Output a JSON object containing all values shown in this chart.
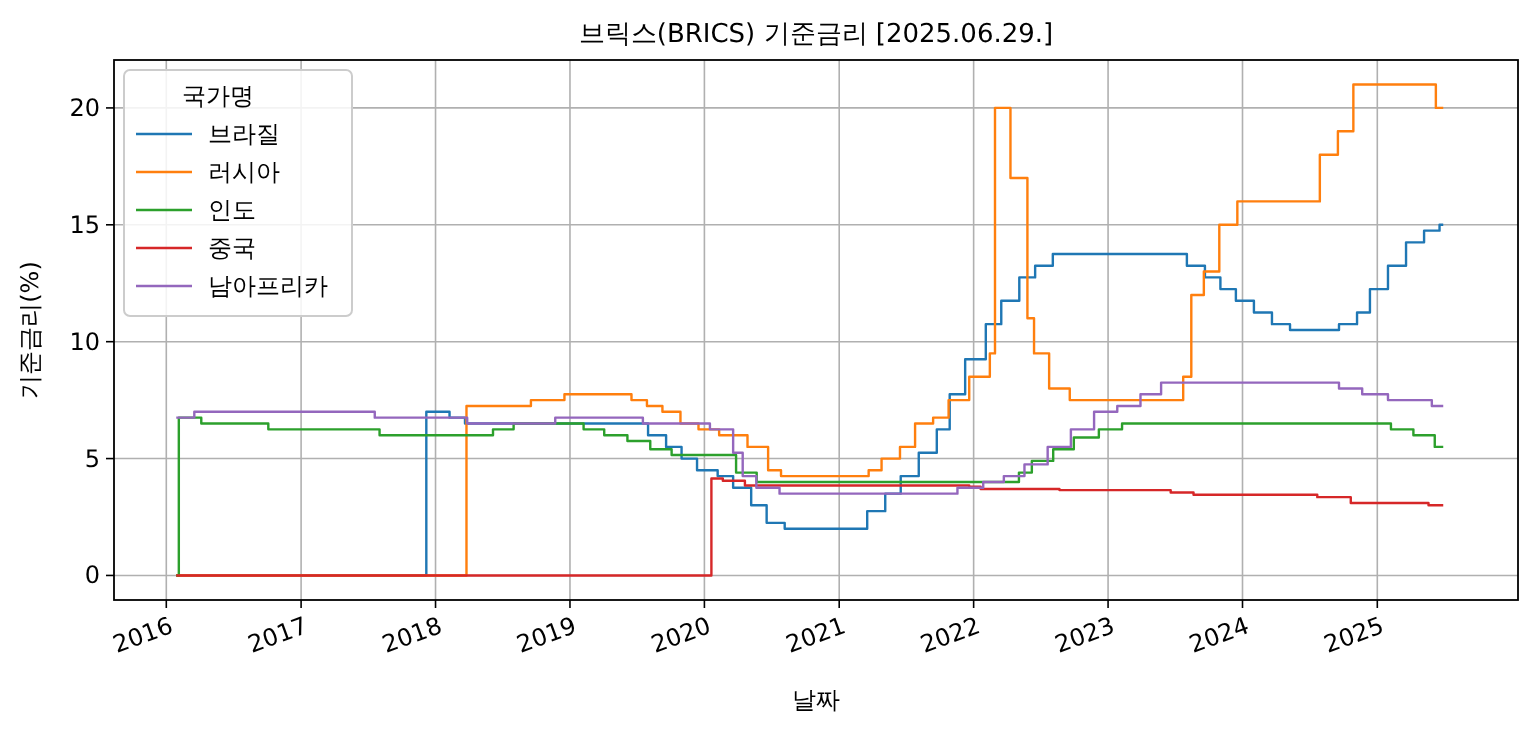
{
  "chart_data": {
    "type": "step",
    "title": "브릭스(BRICS) 기준금리 [2025.06.29.]",
    "xlabel": "날짜",
    "ylabel": "기준금리(%)",
    "legend_title": "국가명",
    "legend": "top left",
    "grid": true,
    "xlim": [
      "2015-08-12",
      "2026-01-18"
    ],
    "xticks": [
      "2016",
      "2017",
      "2018",
      "2019",
      "2020",
      "2021",
      "2022",
      "2023",
      "2024",
      "2025"
    ],
    "ylim": [
      -1.05,
      22.05
    ],
    "yticks": [
      0,
      5,
      10,
      15,
      20
    ],
    "series": [
      {
        "name": "브라질",
        "color": "#1f77b4",
        "x": [
          "2016-01-28",
          "2017-12-07",
          "2018-02-08",
          "2018-03-22",
          "2019-08-01",
          "2019-09-19",
          "2019-10-31",
          "2019-12-12",
          "2020-02-06",
          "2020-03-19",
          "2020-05-07",
          "2020-06-18",
          "2020-08-06",
          "2021-03-18",
          "2021-05-06",
          "2021-06-17",
          "2021-08-05",
          "2021-09-23",
          "2021-10-28",
          "2021-12-09",
          "2022-02-03",
          "2022-03-17",
          "2022-05-05",
          "2022-06-17",
          "2022-08-04",
          "2023-08-03",
          "2023-09-21",
          "2023-11-02",
          "2023-12-14",
          "2024-02-01",
          "2024-03-21",
          "2024-05-09",
          "2024-09-19",
          "2024-11-07",
          "2024-12-12",
          "2025-01-30",
          "2025-03-20",
          "2025-05-08",
          "2025-06-19",
          "2025-06-29"
        ],
        "values": [
          0,
          7.0,
          6.75,
          6.5,
          6.0,
          5.5,
          5.0,
          4.5,
          4.25,
          3.75,
          3.0,
          2.25,
          2.0,
          2.75,
          3.5,
          4.25,
          5.25,
          6.25,
          7.75,
          9.25,
          10.75,
          11.75,
          12.75,
          13.25,
          13.75,
          13.25,
          12.75,
          12.25,
          11.75,
          11.25,
          10.75,
          10.5,
          10.75,
          11.25,
          12.25,
          13.25,
          14.25,
          14.75,
          15.0,
          15.0
        ]
      },
      {
        "name": "러시아",
        "color": "#ff7f0e",
        "x": [
          "2016-01-28",
          "2018-03-26",
          "2018-09-17",
          "2018-12-17",
          "2019-06-17",
          "2019-07-29",
          "2019-09-09",
          "2019-10-28",
          "2019-12-16",
          "2020-02-10",
          "2020-04-27",
          "2020-06-22",
          "2020-07-27",
          "2021-03-22",
          "2021-04-26",
          "2021-06-15",
          "2021-07-26",
          "2021-09-13",
          "2021-10-25",
          "2021-12-20",
          "2022-02-14",
          "2022-02-28",
          "2022-04-11",
          "2022-05-27",
          "2022-06-14",
          "2022-07-25",
          "2022-09-19",
          "2023-07-24",
          "2023-08-15",
          "2023-09-18",
          "2023-10-30",
          "2023-12-18",
          "2024-07-29",
          "2024-09-16",
          "2024-10-28",
          "2025-06-09",
          "2025-06-29"
        ],
        "values": [
          0,
          7.25,
          7.5,
          7.75,
          7.5,
          7.25,
          7.0,
          6.5,
          6.25,
          6.0,
          5.5,
          4.5,
          4.25,
          4.5,
          5.0,
          5.5,
          6.5,
          6.75,
          7.5,
          8.5,
          9.5,
          20,
          17,
          11,
          9.5,
          8.0,
          7.5,
          8.5,
          12,
          13,
          15,
          16,
          18,
          19,
          21,
          20,
          20
        ]
      },
      {
        "name": "인도",
        "color": "#2ca02c",
        "x": [
          "2016-01-28",
          "2016-02-04",
          "2016-04-05",
          "2016-10-04",
          "2017-08-02",
          "2018-06-06",
          "2018-08-01",
          "2019-02-07",
          "2019-04-04",
          "2019-06-06",
          "2019-08-07",
          "2019-10-04",
          "2020-03-27",
          "2020-05-22",
          "2022-05-04",
          "2022-06-08",
          "2022-08-05",
          "2022-09-30",
          "2022-12-07",
          "2023-02-08",
          "2025-02-07",
          "2025-04-09",
          "2025-06-06",
          "2025-06-29"
        ],
        "values": [
          0,
          6.75,
          6.5,
          6.25,
          6.0,
          6.25,
          6.5,
          6.25,
          6.0,
          5.75,
          5.4,
          5.15,
          4.4,
          4.0,
          4.4,
          4.9,
          5.4,
          5.9,
          6.25,
          6.5,
          6.25,
          6.0,
          5.5,
          5.5
        ]
      },
      {
        "name": "중국",
        "color": "#d62728",
        "x": [
          "2016-01-28",
          "2020-01-20",
          "2020-02-20",
          "2020-04-20",
          "2021-12-20",
          "2022-01-20",
          "2022-08-22",
          "2023-06-20",
          "2023-08-21",
          "2024-07-22",
          "2024-10-21",
          "2025-05-20",
          "2025-06-29"
        ],
        "values": [
          0,
          4.15,
          4.05,
          3.85,
          3.8,
          3.7,
          3.65,
          3.55,
          3.45,
          3.35,
          3.1,
          3.0,
          3.0
        ]
      },
      {
        "name": "남아프리카",
        "color": "#9467bd",
        "x": [
          "2016-01-28",
          "2016-03-17",
          "2017-07-20",
          "2018-03-28",
          "2018-11-22",
          "2019-07-18",
          "2020-01-16",
          "2020-03-19",
          "2020-04-14",
          "2020-05-21",
          "2020-07-23",
          "2021-11-18",
          "2022-01-27",
          "2022-03-24",
          "2022-05-19",
          "2022-07-21",
          "2022-09-22",
          "2022-11-24",
          "2023-01-26",
          "2023-03-30",
          "2023-05-25",
          "2024-09-19",
          "2024-11-21",
          "2025-01-30",
          "2025-05-29",
          "2025-06-29"
        ],
        "values": [
          6.75,
          7.0,
          6.75,
          6.5,
          6.75,
          6.5,
          6.25,
          5.25,
          4.25,
          3.75,
          3.5,
          3.75,
          4.0,
          4.25,
          4.75,
          5.5,
          6.25,
          7.0,
          7.25,
          7.75,
          8.25,
          8.0,
          7.75,
          7.5,
          7.25,
          7.25
        ]
      }
    ]
  }
}
